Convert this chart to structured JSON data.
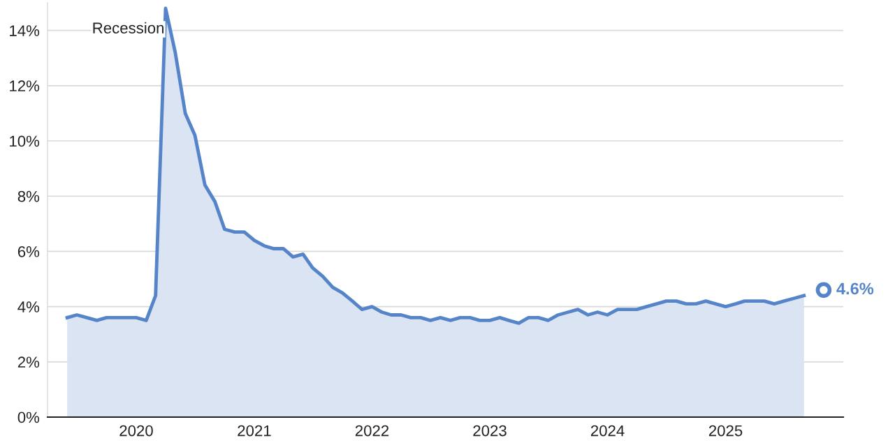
{
  "chart_data": {
    "type": "area",
    "x": [
      "2019-06",
      "2019-07",
      "2019-08",
      "2019-09",
      "2019-10",
      "2019-11",
      "2019-12",
      "2020-01",
      "2020-02",
      "2020-03",
      "2020-04",
      "2020-05",
      "2020-06",
      "2020-07",
      "2020-08",
      "2020-09",
      "2020-10",
      "2020-11",
      "2020-12",
      "2021-01",
      "2021-02",
      "2021-03",
      "2021-04",
      "2021-05",
      "2021-06",
      "2021-07",
      "2021-08",
      "2021-09",
      "2021-10",
      "2021-11",
      "2021-12",
      "2022-01",
      "2022-02",
      "2022-03",
      "2022-04",
      "2022-05",
      "2022-06",
      "2022-07",
      "2022-08",
      "2022-09",
      "2022-10",
      "2022-11",
      "2022-12",
      "2023-01",
      "2023-02",
      "2023-03",
      "2023-04",
      "2023-05",
      "2023-06",
      "2023-07",
      "2023-08",
      "2023-09",
      "2023-10",
      "2023-11",
      "2023-12",
      "2024-01",
      "2024-02",
      "2024-03",
      "2024-04",
      "2024-05",
      "2024-06",
      "2024-07",
      "2024-08",
      "2024-09",
      "2024-10",
      "2024-11",
      "2024-12",
      "2025-01",
      "2025-02",
      "2025-03",
      "2025-04",
      "2025-05",
      "2025-06",
      "2025-07",
      "2025-08",
      "2025-09"
    ],
    "series": [
      {
        "color": "#5585c8",
        "values": [
          3.6,
          3.7,
          3.6,
          3.5,
          3.6,
          3.6,
          3.6,
          3.6,
          3.5,
          4.4,
          14.8,
          13.2,
          11.0,
          10.2,
          8.4,
          7.8,
          6.8,
          6.7,
          6.7,
          6.4,
          6.2,
          6.1,
          6.1,
          5.8,
          5.9,
          5.4,
          5.1,
          4.7,
          4.5,
          4.2,
          3.9,
          4.0,
          3.8,
          3.7,
          3.7,
          3.6,
          3.6,
          3.5,
          3.6,
          3.5,
          3.6,
          3.6,
          3.5,
          3.5,
          3.6,
          3.5,
          3.4,
          3.6,
          3.6,
          3.5,
          3.7,
          3.8,
          3.9,
          3.7,
          3.8,
          3.7,
          3.9,
          3.9,
          3.9,
          4.0,
          4.1,
          4.2,
          4.2,
          4.1,
          4.1,
          4.2,
          4.1,
          4.0,
          4.1,
          4.2,
          4.2,
          4.2,
          4.1,
          4.2,
          4.3,
          4.4
        ]
      },
      {
        "type": "scatter",
        "color": "#5585c8",
        "x": [
          "2025-11"
        ],
        "values": [
          4.6
        ],
        "value_labels": [
          "4.6%"
        ],
        "marker": "circle"
      }
    ],
    "annotations": [
      "Recession"
    ],
    "xlim": [
      "2019-04-01",
      "2026-01-01"
    ],
    "xticks": [
      {
        "value": "2020-01-01",
        "label": "2020"
      },
      {
        "value": "2021-01-01",
        "label": "2021"
      },
      {
        "value": "2022-01-01",
        "label": "2022"
      },
      {
        "value": "2023-01-01",
        "label": "2023"
      },
      {
        "value": "2024-01-01",
        "label": "2024"
      },
      {
        "value": "2025-01-01",
        "label": "2025"
      }
    ],
    "ylim": [
      0,
      15
    ],
    "yticks": [
      {
        "value": 0,
        "label": "0%"
      },
      {
        "value": 2,
        "label": "2%"
      },
      {
        "value": 4,
        "label": "4%"
      },
      {
        "value": 6,
        "label": "6%"
      },
      {
        "value": 8,
        "label": "8%"
      },
      {
        "value": 10,
        "label": "10%"
      },
      {
        "value": 12,
        "label": "12%"
      },
      {
        "value": 14,
        "label": "14%"
      }
    ],
    "grid": "y"
  }
}
